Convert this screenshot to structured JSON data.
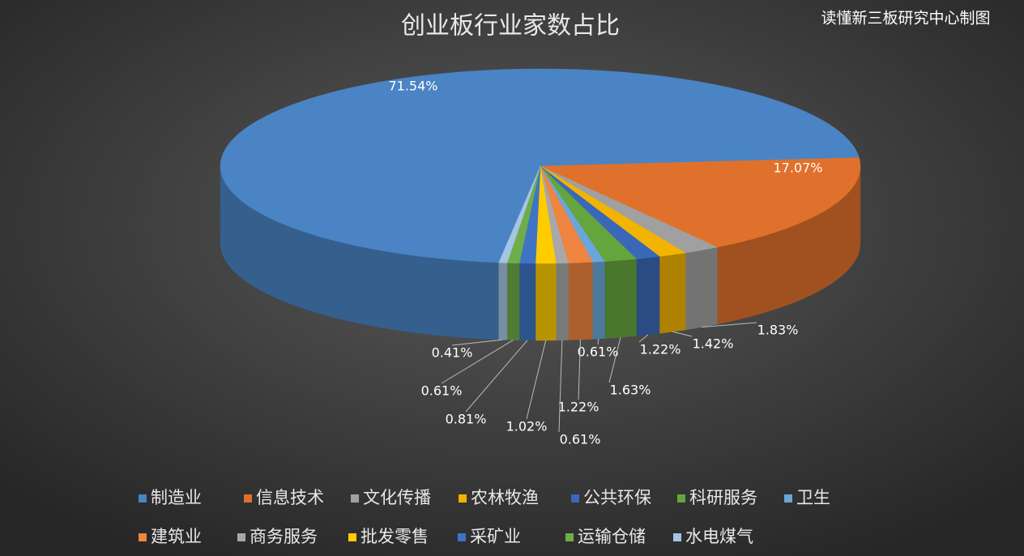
{
  "chart_data": {
    "type": "pie3d",
    "title": "创业板行业家数占比",
    "watermark": "读懂新三板研究中心制图",
    "categories": [
      "制造业",
      "信息技术",
      "文化传播",
      "农林牧渔",
      "公共环保",
      "科研服务",
      "卫生",
      "建筑业",
      "商务服务",
      "批发零售",
      "采矿业",
      "运输仓储",
      "水电煤气"
    ],
    "values": [
      71.54,
      17.07,
      1.83,
      1.42,
      1.22,
      1.63,
      0.61,
      1.22,
      0.61,
      1.02,
      0.81,
      0.61,
      0.41
    ],
    "value_labels": [
      "71.54%",
      "17.07%",
      "1.83%",
      "1.42%",
      "1.22%",
      "1.63%",
      "0.61%",
      "1.22%",
      "0.61%",
      "1.02%",
      "0.81%",
      "0.61%",
      "0.41%"
    ],
    "colors": [
      "#4a84c4",
      "#e0712c",
      "#a0a0a0",
      "#f2b400",
      "#3a68b8",
      "#64a53e",
      "#6aa6da",
      "#ee8540",
      "#a8a8a8",
      "#ffcc00",
      "#3f74c4",
      "#6eae48",
      "#a6c4e4"
    ],
    "legend": "bottom"
  }
}
